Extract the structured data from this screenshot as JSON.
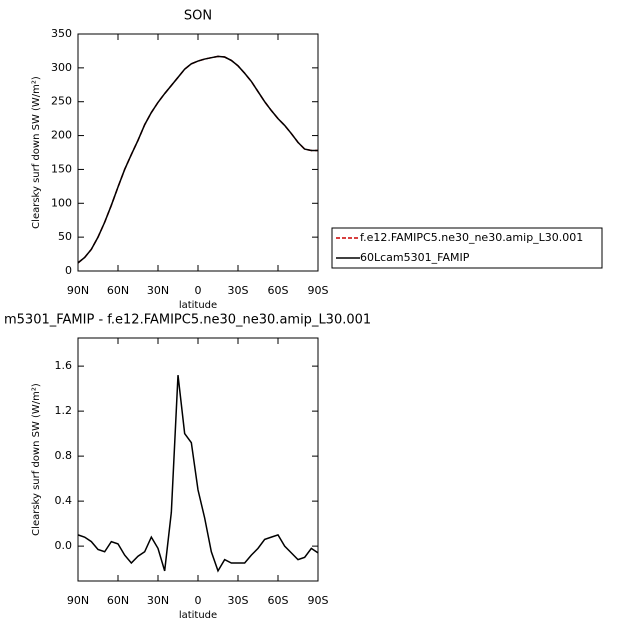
{
  "chart_data": [
    {
      "type": "line",
      "title": "SON",
      "xlabel": "latitude",
      "ylabel": "Clearsky surf down SW (W/m²)",
      "x": [
        90,
        85,
        80,
        75,
        70,
        65,
        60,
        55,
        50,
        45,
        40,
        35,
        30,
        25,
        20,
        15,
        10,
        5,
        0,
        -5,
        -10,
        -15,
        -20,
        -25,
        -30,
        -35,
        -40,
        -45,
        -50,
        -55,
        -60,
        -65,
        -70,
        -75,
        -80,
        -85,
        -90
      ],
      "xlim": [
        90,
        -90
      ],
      "xticks": [
        {
          "value": 90,
          "label": "90N"
        },
        {
          "value": 60,
          "label": "60N"
        },
        {
          "value": 30,
          "label": "30N"
        },
        0,
        {
          "value": -30,
          "label": "30S"
        },
        {
          "value": -60,
          "label": "60S"
        },
        {
          "value": -90,
          "label": "90S"
        }
      ],
      "ylim": [
        0,
        350
      ],
      "yticks": [
        0,
        50,
        100,
        150,
        200,
        250,
        300,
        350
      ],
      "legend": "right",
      "series": [
        {
          "name": "f.e12.FAMIPC5.ne30_ne30.amip_L30.001",
          "color": "#cc0000",
          "dash": true,
          "values": [
            12,
            20,
            32,
            50,
            72,
            97,
            124,
            150,
            172,
            193,
            216,
            234,
            249,
            262,
            274,
            286,
            298,
            306,
            310,
            313,
            315,
            317,
            316,
            311,
            303,
            292,
            280,
            265,
            250,
            237,
            225,
            215,
            203,
            190,
            180,
            178,
            178
          ]
        },
        {
          "name": "60Lcam5301_FAMIP",
          "color": "#000000",
          "dash": false,
          "values": [
            12,
            20,
            32,
            50,
            72,
            97,
            124,
            150,
            172,
            193,
            216,
            234,
            249,
            262,
            274,
            286,
            298,
            306,
            310,
            313,
            315,
            317,
            316,
            311,
            303,
            292,
            280,
            265,
            250,
            237,
            225,
            215,
            203,
            190,
            180,
            178,
            178
          ]
        }
      ]
    },
    {
      "type": "line",
      "title": "m5301_FAMIP - f.e12.FAMIPC5.ne30_ne30.amip_L30.001",
      "xlabel": "latitude",
      "ylabel": "Clearsky surf down SW (W/m²)",
      "x": [
        90,
        85,
        80,
        75,
        70,
        65,
        60,
        55,
        50,
        45,
        40,
        35,
        30,
        25,
        20,
        15,
        10,
        5,
        0,
        -5,
        -10,
        -15,
        -20,
        -25,
        -30,
        -35,
        -40,
        -45,
        -50,
        -55,
        -60,
        -65,
        -70,
        -75,
        -80,
        -85,
        -90
      ],
      "xlim": [
        90,
        -90
      ],
      "xticks": [
        {
          "value": 90,
          "label": "90N"
        },
        {
          "value": 60,
          "label": "60N"
        },
        {
          "value": 30,
          "label": "30N"
        },
        0,
        {
          "value": -30,
          "label": "30S"
        },
        {
          "value": -60,
          "label": "60S"
        },
        {
          "value": -90,
          "label": "90S"
        }
      ],
      "ylim": [
        -0.31,
        1.85
      ],
      "yticks": [
        {
          "value": 0,
          "label": "0.0"
        },
        0.4,
        0.8,
        1.2,
        1.6
      ],
      "series": [
        {
          "color": "#000000",
          "dash": false,
          "values": [
            0.1,
            0.08,
            0.04,
            -0.03,
            -0.05,
            0.04,
            0.02,
            -0.08,
            -0.15,
            -0.09,
            -0.05,
            0.08,
            -0.02,
            -0.22,
            0.3,
            1.52,
            1.0,
            0.92,
            0.5,
            0.25,
            -0.05,
            -0.22,
            -0.12,
            -0.15,
            -0.15,
            -0.15,
            -0.08,
            -0.02,
            0.06,
            0.08,
            0.1,
            0.0,
            -0.06,
            -0.12,
            -0.1,
            -0.02,
            -0.06
          ]
        }
      ]
    }
  ]
}
